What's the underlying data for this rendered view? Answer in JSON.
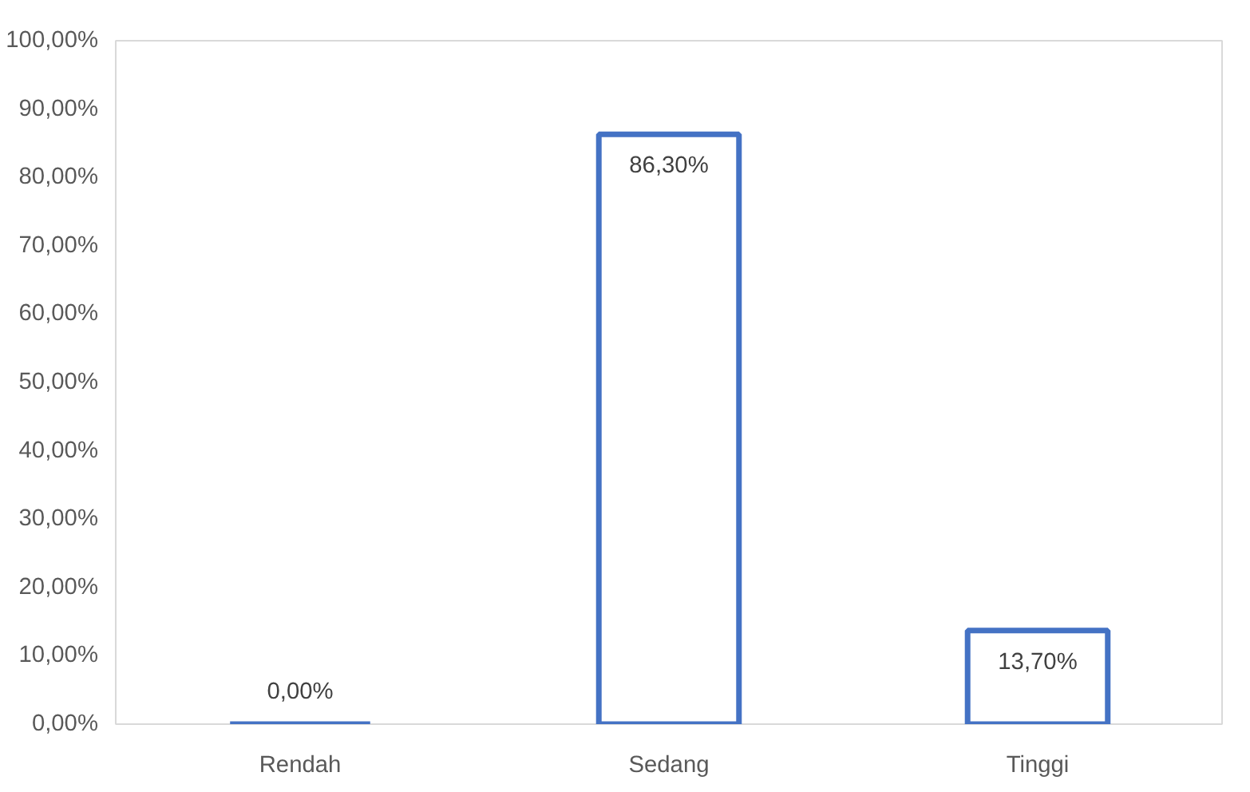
{
  "chart_data": {
    "type": "bar",
    "categories": [
      "Rendah",
      "Sedang",
      "Tinggi"
    ],
    "values": [
      0,
      86.3,
      13.7
    ],
    "color": "#4472c4",
    "value_labels": [
      "0,00%",
      "86,30%",
      "13,70%"
    ],
    "ylim": [
      0,
      100
    ],
    "yticks": [
      {
        "value": 0,
        "label": "0,00%"
      },
      {
        "value": 10,
        "label": "10,00%"
      },
      {
        "value": 20,
        "label": "20,00%"
      },
      {
        "value": 30,
        "label": "30,00%"
      },
      {
        "value": 40,
        "label": "40,00%"
      },
      {
        "value": 50,
        "label": "50,00%"
      },
      {
        "value": 60,
        "label": "60,00%"
      },
      {
        "value": 70,
        "label": "70,00%"
      },
      {
        "value": 80,
        "label": "80,00%"
      },
      {
        "value": 90,
        "label": "90,00%"
      },
      {
        "value": 100,
        "label": "100,00%"
      }
    ],
    "grid": false
  }
}
